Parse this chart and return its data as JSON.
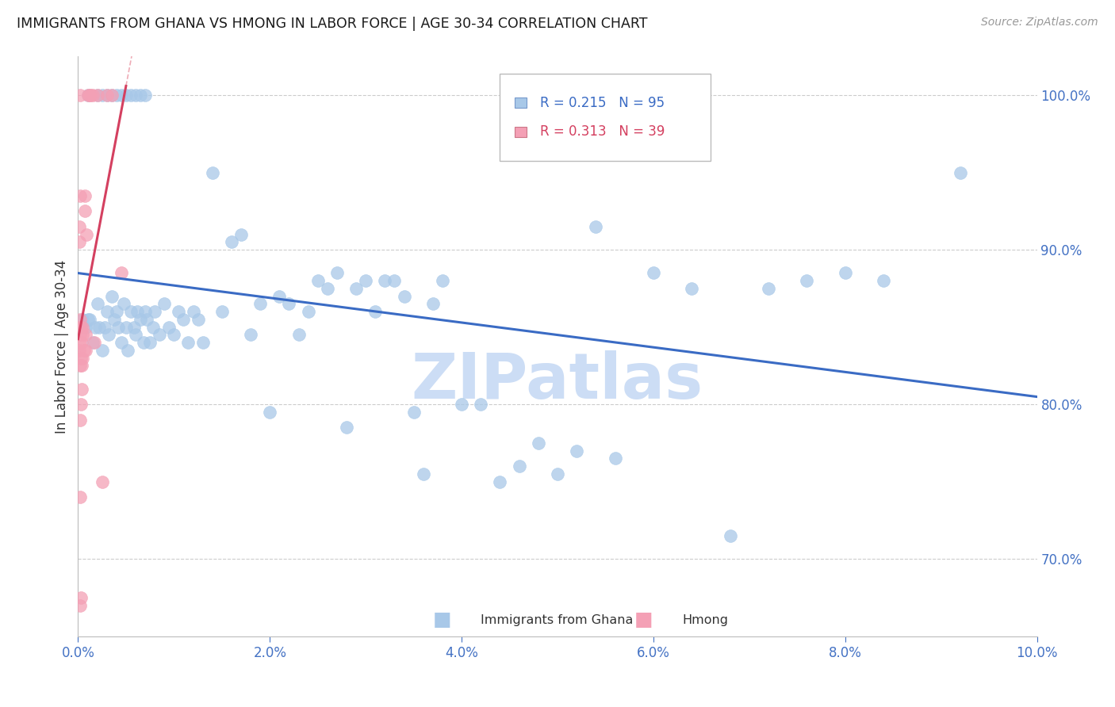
{
  "title": "IMMIGRANTS FROM GHANA VS HMONG IN LABOR FORCE | AGE 30-34 CORRELATION CHART",
  "source": "Source: ZipAtlas.com",
  "ylabel_left": "In Labor Force | Age 30-34",
  "xlim": [
    0.0,
    10.0
  ],
  "ylim": [
    65.0,
    102.5
  ],
  "yticks_right": [
    70.0,
    80.0,
    90.0,
    100.0
  ],
  "ytick_labels_right": [
    "70.0%",
    "80.0%",
    "90.0%",
    "100.0%"
  ],
  "xticks": [
    0.0,
    2.0,
    4.0,
    6.0,
    8.0,
    10.0
  ],
  "xtick_labels": [
    "0.0%",
    "2.0%",
    "4.0%",
    "6.0%",
    "8.0%",
    "10.0%"
  ],
  "ghana_R": 0.215,
  "ghana_N": 95,
  "hmong_R": 0.313,
  "hmong_N": 39,
  "ghana_color": "#a8c8e8",
  "hmong_color": "#f4a0b5",
  "ghana_line_color": "#3a6bc4",
  "hmong_line_color": "#d44060",
  "hmong_dashed_color": "#e88898",
  "title_color": "#1a1a1a",
  "source_color": "#999999",
  "axis_color": "#4472c4",
  "legend_label_ghana": "Immigrants from Ghana",
  "legend_label_hmong": "Hmong",
  "ghana_x": [
    0.05,
    0.08,
    0.1,
    0.12,
    0.15,
    0.18,
    0.2,
    0.22,
    0.25,
    0.28,
    0.3,
    0.32,
    0.35,
    0.38,
    0.4,
    0.42,
    0.45,
    0.48,
    0.5,
    0.52,
    0.55,
    0.58,
    0.6,
    0.62,
    0.65,
    0.68,
    0.7,
    0.72,
    0.75,
    0.78,
    0.8,
    0.85,
    0.9,
    0.95,
    1.0,
    1.05,
    1.1,
    1.15,
    1.2,
    1.25,
    1.3,
    1.4,
    1.5,
    1.6,
    1.7,
    1.8,
    1.9,
    2.0,
    2.1,
    2.2,
    2.3,
    2.4,
    2.5,
    2.6,
    2.7,
    2.8,
    2.9,
    3.0,
    3.1,
    3.2,
    3.3,
    3.4,
    3.5,
    3.6,
    3.7,
    3.8,
    4.0,
    4.2,
    4.4,
    4.6,
    4.8,
    5.0,
    5.2,
    5.4,
    5.6,
    6.0,
    6.4,
    6.8,
    7.2,
    7.6,
    8.0,
    8.4,
    9.2,
    0.1,
    0.2,
    0.25,
    0.3,
    0.35,
    0.4,
    0.45,
    0.5,
    0.55,
    0.6,
    0.65,
    0.7
  ],
  "ghana_y": [
    85.5,
    85.0,
    85.5,
    85.5,
    84.0,
    85.0,
    86.5,
    85.0,
    83.5,
    85.0,
    86.0,
    84.5,
    87.0,
    85.5,
    86.0,
    85.0,
    84.0,
    86.5,
    85.0,
    83.5,
    86.0,
    85.0,
    84.5,
    86.0,
    85.5,
    84.0,
    86.0,
    85.5,
    84.0,
    85.0,
    86.0,
    84.5,
    86.5,
    85.0,
    84.5,
    86.0,
    85.5,
    84.0,
    86.0,
    85.5,
    84.0,
    95.0,
    86.0,
    90.5,
    91.0,
    84.5,
    86.5,
    79.5,
    87.0,
    86.5,
    84.5,
    86.0,
    88.0,
    87.5,
    88.5,
    78.5,
    87.5,
    88.0,
    86.0,
    88.0,
    88.0,
    87.0,
    79.5,
    75.5,
    86.5,
    88.0,
    80.0,
    80.0,
    75.0,
    76.0,
    77.5,
    75.5,
    77.0,
    91.5,
    76.5,
    88.5,
    87.5,
    71.5,
    87.5,
    88.0,
    88.5,
    88.0,
    95.0,
    100.0,
    100.0,
    100.0,
    100.0,
    100.0,
    100.0,
    100.0,
    100.0,
    100.0,
    100.0,
    100.0,
    100.0
  ],
  "hmong_x": [
    0.01,
    0.01,
    0.01,
    0.01,
    0.01,
    0.02,
    0.02,
    0.02,
    0.02,
    0.02,
    0.02,
    0.02,
    0.02,
    0.03,
    0.03,
    0.03,
    0.03,
    0.04,
    0.04,
    0.04,
    0.05,
    0.05,
    0.05,
    0.06,
    0.07,
    0.07,
    0.08,
    0.08,
    0.09,
    0.1,
    0.12,
    0.13,
    0.15,
    0.17,
    0.2,
    0.25,
    0.3,
    0.35,
    0.45
  ],
  "hmong_y": [
    85.0,
    84.0,
    83.5,
    90.5,
    91.5,
    67.0,
    74.0,
    79.0,
    82.5,
    84.5,
    85.5,
    93.5,
    100.0,
    67.5,
    80.0,
    83.0,
    85.0,
    81.0,
    82.5,
    84.0,
    83.0,
    84.5,
    85.0,
    83.5,
    92.5,
    93.5,
    83.5,
    84.5,
    91.0,
    100.0,
    100.0,
    100.0,
    100.0,
    84.0,
    100.0,
    75.0,
    100.0,
    100.0,
    88.5
  ],
  "background_color": "#ffffff",
  "grid_color": "#cccccc",
  "watermark_text": "ZIPatlas",
  "watermark_color": "#ccddf5"
}
